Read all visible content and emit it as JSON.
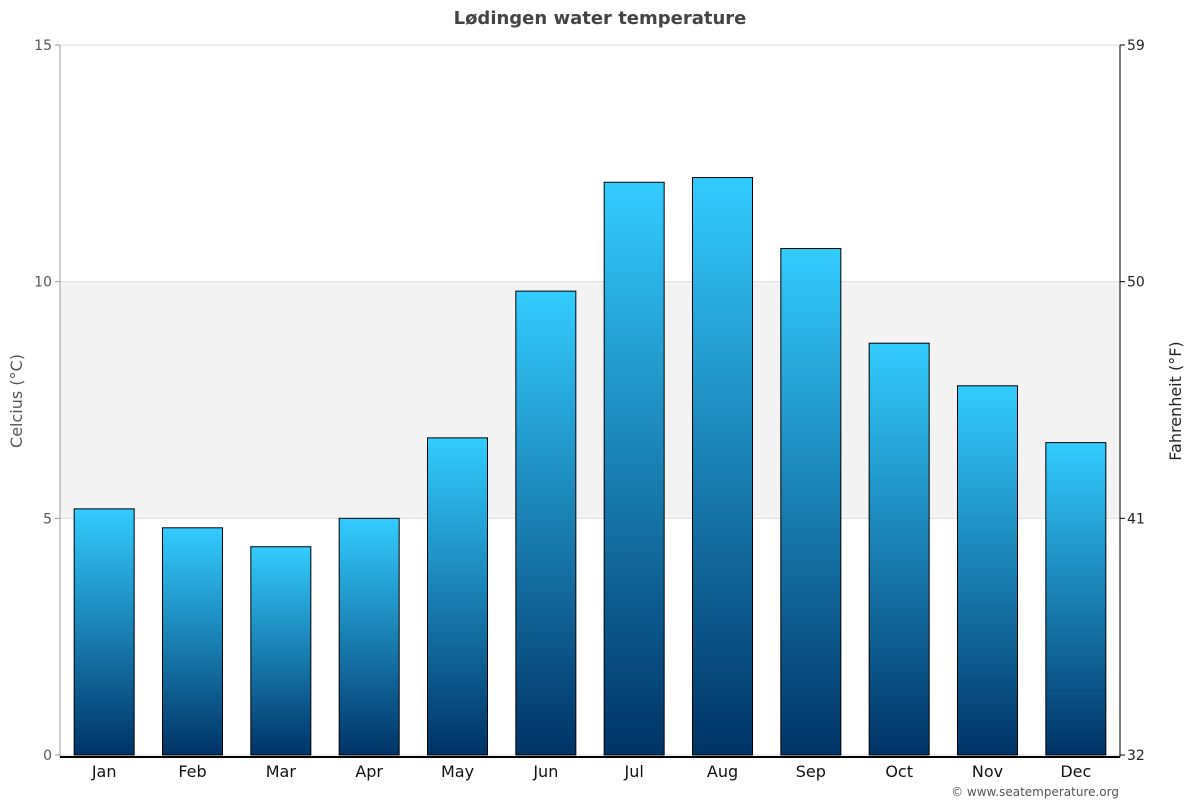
{
  "chart_data": {
    "type": "bar",
    "title": "Lødingen water temperature",
    "ylabel": "Celcius (°C)",
    "ylabel_right": "Fahrenheit (°F)",
    "categories": [
      "Jan",
      "Feb",
      "Mar",
      "Apr",
      "May",
      "Jun",
      "Jul",
      "Aug",
      "Sep",
      "Oct",
      "Nov",
      "Dec"
    ],
    "values": [
      5.2,
      4.8,
      4.4,
      5.0,
      6.7,
      9.8,
      12.1,
      12.2,
      10.7,
      8.7,
      7.8,
      6.6
    ],
    "ylim": [
      0,
      15
    ],
    "yticks": [
      "0",
      "5",
      "10",
      "15"
    ],
    "yticks_right": [
      "32",
      "41",
      "50",
      "59"
    ],
    "grid": true,
    "band": [
      5,
      10
    ],
    "colors": {
      "bar_top": "#33ccff",
      "bar_bottom": "#003366",
      "band": "#f3f3f3"
    }
  },
  "credit": "© www.seatemperature.org"
}
